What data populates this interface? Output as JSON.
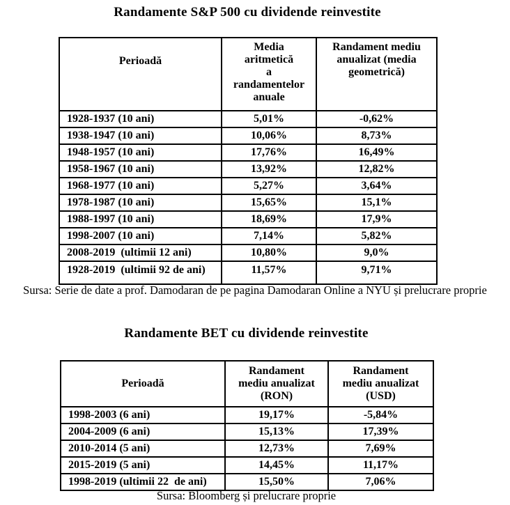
{
  "page": {
    "background": "#ffffff",
    "text_color": "#000000",
    "border_color": "#000000"
  },
  "sp500": {
    "title": "Randamente S&P 500 cu dividende reinvestite",
    "headers": {
      "period": "Perioadă",
      "arithmetic": "Media\naritmetică\na\nrandamentelor\nanuale",
      "geometric": "Randament mediu\nanualizat (media\ngeometrică)"
    },
    "rows": [
      {
        "period": "1928-1937 (10 ani)",
        "arithmetic": "5,01%",
        "geometric": "-0,62%"
      },
      {
        "period": "1938-1947 (10 ani)",
        "arithmetic": "10,06%",
        "geometric": "8,73%"
      },
      {
        "period": "1948-1957 (10 ani)",
        "arithmetic": "17,76%",
        "geometric": "16,49%"
      },
      {
        "period": "1958-1967 (10 ani)",
        "arithmetic": "13,92%",
        "geometric": "12,82%"
      },
      {
        "period": "1968-1977 (10 ani)",
        "arithmetic": "5,27%",
        "geometric": "3,64%"
      },
      {
        "period": "1978-1987 (10 ani)",
        "arithmetic": "15,65%",
        "geometric": "15,1%"
      },
      {
        "period": "1988-1997 (10 ani)",
        "arithmetic": "18,69%",
        "geometric": "17,9%"
      },
      {
        "period": "1998-2007 (10 ani)",
        "arithmetic": "7,14%",
        "geometric": "5,82%"
      },
      {
        "period": "2008-2019  (ultimii 12 ani)",
        "arithmetic": "10,80%",
        "geometric": "9,0%"
      },
      {
        "period": "1928-2019  (ultimii 92 de ani)",
        "arithmetic": "11,57%",
        "geometric": "9,71%"
      }
    ],
    "source": "Sursa: Serie de date a prof. Damodaran de pe pagina Damodaran Online a NYU și prelucrare proprie"
  },
  "bet": {
    "title": "Randamente BET cu dividende reinvestite",
    "headers": {
      "period": "Perioadă",
      "ron": "Randament\nmediu anualizat\n(RON)",
      "usd": "Randament\nmediu anualizat\n(USD)"
    },
    "rows": [
      {
        "period": "1998-2003 (6 ani)",
        "ron": "19,17%",
        "usd": "-5,84%"
      },
      {
        "period": "2004-2009 (6 ani)",
        "ron": "15,13%",
        "usd": "17,39%"
      },
      {
        "period": "2010-2014 (5 ani)",
        "ron": "12,73%",
        "usd": "7,69%"
      },
      {
        "period": "2015-2019 (5 ani)",
        "ron": "14,45%",
        "usd": "11,17%"
      },
      {
        "period": "1998-2019 (ultimii 22  de ani)",
        "ron": "15,50%",
        "usd": "7,06%"
      }
    ],
    "source": "Sursa: Bloomberg și prelucrare proprie"
  }
}
